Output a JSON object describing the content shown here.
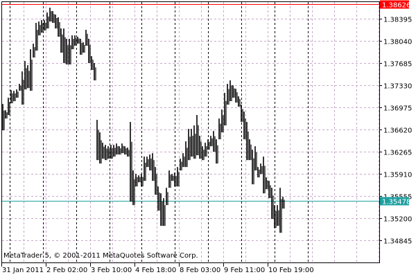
{
  "chart_data": {
    "type": "bar",
    "subtype": "ohlc-bars",
    "watermark": "MetaTrader 5, © 2001-2011 MetaQuotes Software Corp.",
    "y_ticks": [
      "1.38395",
      "1.38040",
      "1.37685",
      "1.37330",
      "1.36975",
      "1.36620",
      "1.36265",
      "1.35910",
      "1.35555",
      "1.35200",
      "1.34845"
    ],
    "ylim": [
      1.346,
      1.3868
    ],
    "x_ticks": [
      "31 Jan 2011",
      "2 Feb 02:00",
      "3 Feb 10:00",
      "4 Feb 18:00",
      "8 Feb 03:00",
      "9 Feb 11:00",
      "10 Feb 19:00"
    ],
    "max_line": {
      "label": "1.38626",
      "value": 1.38626,
      "color": "#ff0000"
    },
    "current_price": {
      "label": "1.35478",
      "value": 1.35478,
      "color": "#20a0a0"
    },
    "grid": true,
    "colors": {
      "bars": "#000000",
      "grid": "#c8a8c8",
      "separator": "#000000",
      "background": "#ffffff"
    },
    "bars_high_low": [
      [
        1.37027,
        1.36605
      ],
      [
        1.36927,
        1.36794
      ],
      [
        1.37127,
        1.3685
      ],
      [
        1.37249,
        1.37038
      ],
      [
        1.37238,
        1.37072
      ],
      [
        1.3726,
        1.37127
      ],
      [
        1.37349,
        1.37238
      ],
      [
        1.37549,
        1.37016
      ],
      [
        1.37715,
        1.3726
      ],
      [
        1.37649,
        1.37282
      ],
      [
        1.37904,
        1.37238
      ],
      [
        1.37993,
        1.37771
      ],
      [
        1.38326,
        1.37882
      ],
      [
        1.38348,
        1.38126
      ],
      [
        1.3837,
        1.3817
      ],
      [
        1.3837,
        1.38204
      ],
      [
        1.38492,
        1.38237
      ],
      [
        1.3857,
        1.38348
      ],
      [
        1.38515,
        1.38326
      ],
      [
        1.38459,
        1.38237
      ],
      [
        1.38415,
        1.38104
      ],
      [
        1.38237,
        1.37849
      ],
      [
        1.38237,
        1.37682
      ],
      [
        1.38071,
        1.3766
      ],
      [
        1.38071,
        1.3766
      ],
      [
        1.38126,
        1.37904
      ],
      [
        1.38126,
        1.3796
      ],
      [
        1.38104,
        1.37993
      ],
      [
        1.38071,
        1.37815
      ],
      [
        1.38015,
        1.37849
      ],
      [
        1.38215,
        1.3796
      ],
      [
        1.38071,
        1.37682
      ],
      [
        1.37793,
        1.37571
      ],
      [
        1.37682,
        1.37405
      ],
      [
        1.36772,
        1.36128
      ],
      [
        1.36572,
        1.36073
      ],
      [
        1.36406,
        1.3615
      ],
      [
        1.36372,
        1.36128
      ],
      [
        1.3635,
        1.3615
      ],
      [
        1.36372,
        1.3615
      ],
      [
        1.36372,
        1.36184
      ],
      [
        1.36394,
        1.36217
      ],
      [
        1.3635,
        1.36217
      ],
      [
        1.36394,
        1.36239
      ],
      [
        1.3635,
        1.36217
      ],
      [
        1.36328,
        1.36184
      ],
      [
        1.36739,
        1.35462
      ],
      [
        1.35962,
        1.35407
      ],
      [
        1.35906,
        1.35706
      ],
      [
        1.35884,
        1.35773
      ],
      [
        1.35906,
        1.35706
      ],
      [
        1.36184,
        1.35795
      ],
      [
        1.36184,
        1.36017
      ],
      [
        1.36217,
        1.35962
      ],
      [
        1.36239,
        1.35795
      ],
      [
        1.36017,
        1.35573
      ],
      [
        1.35706,
        1.35318
      ],
      [
        1.35595,
        1.35074
      ],
      [
        1.35518,
        1.35074
      ],
      [
        1.35684,
        1.35407
      ],
      [
        1.35962,
        1.35684
      ],
      [
        1.35906,
        1.35795
      ],
      [
        1.35928,
        1.35706
      ],
      [
        1.36017,
        1.35706
      ],
      [
        1.3615,
        1.35962
      ],
      [
        1.36239,
        1.36017
      ],
      [
        1.36428,
        1.36017
      ],
      [
        1.36628,
        1.36128
      ],
      [
        1.36628,
        1.36184
      ],
      [
        1.36683,
        1.3615
      ],
      [
        1.3685,
        1.36206
      ],
      [
        1.36517,
        1.3615
      ],
      [
        1.3635,
        1.36128
      ],
      [
        1.36406,
        1.36184
      ],
      [
        1.36461,
        1.36295
      ],
      [
        1.36517,
        1.3635
      ],
      [
        1.36594,
        1.36261
      ],
      [
        1.36461,
        1.36073
      ],
      [
        1.36794,
        1.36461
      ],
      [
        1.36938,
        1.36572
      ],
      [
        1.37205,
        1.36683
      ],
      [
        1.37349,
        1.37016
      ],
      [
        1.37405,
        1.37072
      ],
      [
        1.37327,
        1.37127
      ],
      [
        1.37271,
        1.37049
      ],
      [
        1.37149,
        1.36983
      ],
      [
        1.37016,
        1.36739
      ],
      [
        1.36905,
        1.36461
      ],
      [
        1.36739,
        1.36128
      ],
      [
        1.36461,
        1.36128
      ],
      [
        1.36295,
        1.3574
      ],
      [
        1.3635,
        1.35962
      ],
      [
        1.36017,
        1.35851
      ],
      [
        1.36073,
        1.35906
      ],
      [
        1.36184,
        1.35595
      ],
      [
        1.35851,
        1.35662
      ],
      [
        1.35795,
        1.35518
      ],
      [
        1.35684,
        1.35185
      ],
      [
        1.35407,
        1.3504
      ],
      [
        1.35407,
        1.35074
      ],
      [
        1.35684,
        1.34963
      ],
      [
        1.3554,
        1.35351
      ]
    ]
  }
}
